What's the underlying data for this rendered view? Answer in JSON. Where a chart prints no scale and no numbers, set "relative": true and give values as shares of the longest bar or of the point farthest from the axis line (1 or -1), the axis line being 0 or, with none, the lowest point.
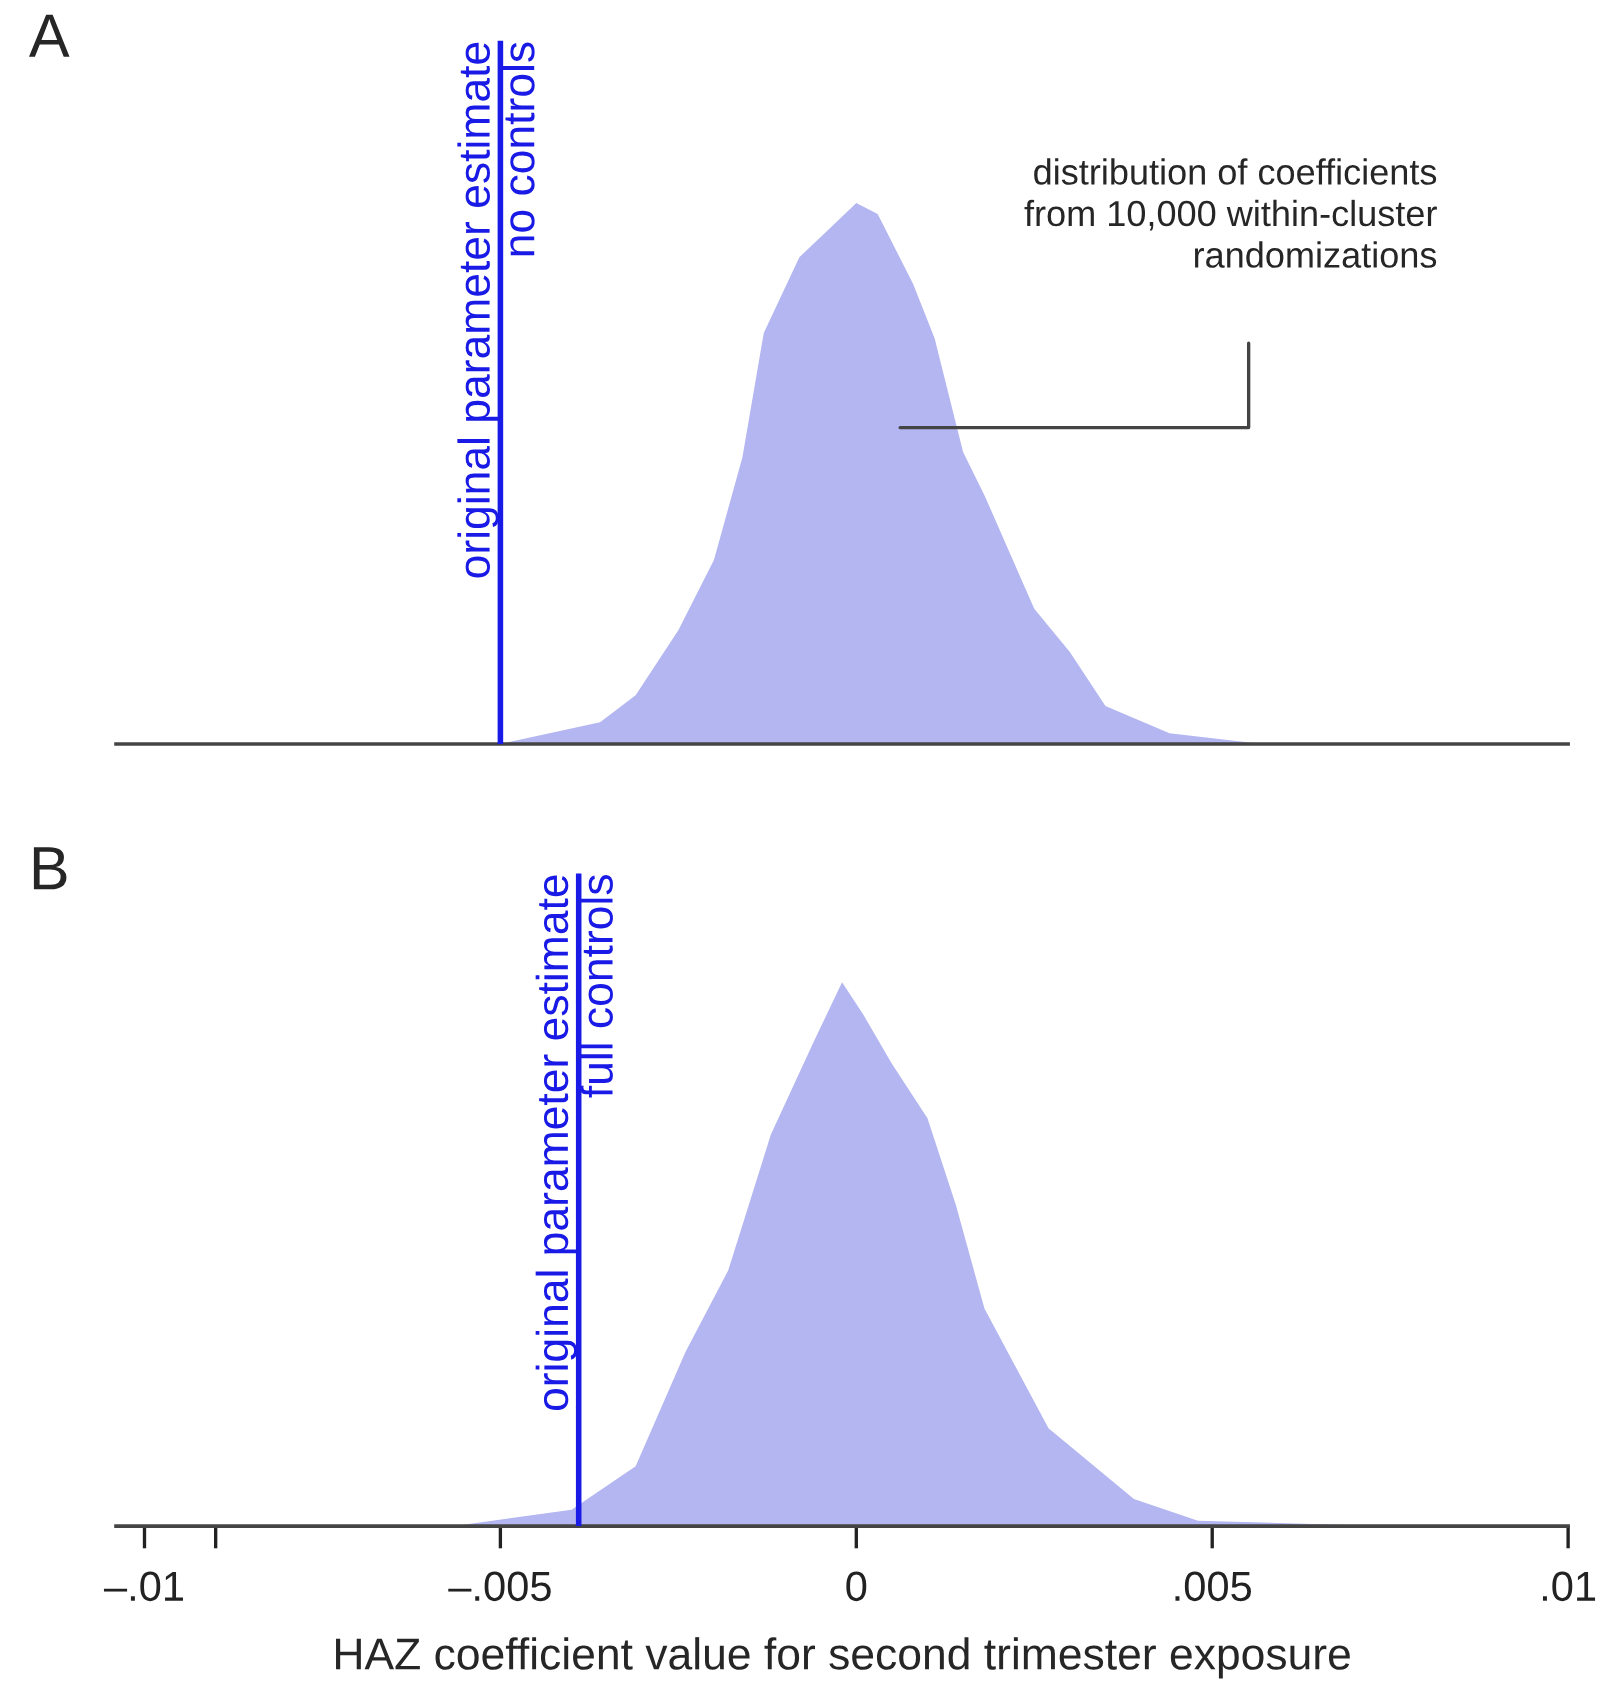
{
  "chart_data": [
    {
      "type": "area",
      "title": "A",
      "relative": true,
      "tick_labels": false,
      "xlim": [
        -0.0104,
        0.01
      ],
      "series": [
        {
          "color": "#b3b6f0",
          "x": [
            -0.00556,
            -0.005,
            -0.0036,
            -0.0031,
            -0.0025,
            -0.002,
            -0.0016,
            -0.0013,
            -0.0008,
            -0.0004,
            0.0,
            0.0003,
            0.0008,
            0.0011,
            0.0015,
            0.0018,
            0.0025,
            0.003,
            0.0035,
            0.0044,
            0.0057
          ],
          "values": [
            0,
            0,
            0.04,
            0.09,
            0.21,
            0.34,
            0.53,
            0.76,
            0.9,
            0.95,
            1.0,
            0.98,
            0.85,
            0.75,
            0.54,
            0.46,
            0.25,
            0.17,
            0.07,
            0.02,
            0
          ]
        }
      ],
      "ref_lines": [
        {
          "axis": "x",
          "value": -0.005,
          "label": "original parameter estimate\nno controls",
          "color": "#1a1ae6"
        }
      ],
      "annotations": [
        "distribution of coefficients\nfrom 10,000 within-cluster\nrandomizations"
      ]
    },
    {
      "type": "area",
      "title": "B",
      "relative": true,
      "tick_labels": "x",
      "xlim": [
        -0.0104,
        0.01
      ],
      "xticks": [
        {
          "value": -0.01,
          "label": "–.01"
        },
        {
          "value": -0.009,
          "label": null
        },
        {
          "value": -0.005,
          "label": "–.005"
        },
        {
          "value": 0,
          "label": "0"
        },
        {
          "value": 0.005,
          "label": ".005"
        },
        {
          "value": 0.01,
          "label": ".01"
        }
      ],
      "xlabel": "HAZ coefficient value for second trimester exposure",
      "series": [
        {
          "color": "#b3b6f0",
          "x": [
            -0.00565,
            -0.004,
            -0.0031,
            -0.0024,
            -0.0018,
            -0.0012,
            -0.0006,
            -0.0002,
            0.0001,
            0.0005,
            0.001,
            0.0014,
            0.0018,
            0.0027,
            0.0039,
            0.0048,
            0.0074
          ],
          "values": [
            0,
            0.03,
            0.11,
            0.32,
            0.47,
            0.72,
            0.89,
            1.0,
            0.94,
            0.85,
            0.75,
            0.59,
            0.4,
            0.18,
            0.05,
            0.01,
            0
          ]
        }
      ],
      "ref_lines": [
        {
          "axis": "x",
          "value": -0.0039,
          "label": "original parameter estimate\nfull controls",
          "color": "#1a1ae6"
        }
      ]
    }
  ]
}
